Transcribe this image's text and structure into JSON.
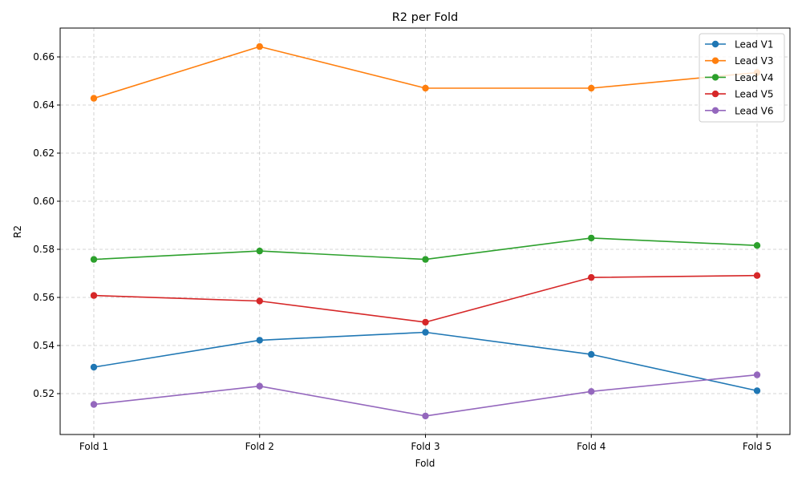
{
  "chart_data": {
    "type": "line",
    "title": "R2 per Fold",
    "xlabel": "Fold",
    "ylabel": "R2",
    "categories": [
      "Fold 1",
      "Fold 2",
      "Fold 3",
      "Fold 4",
      "Fold 5"
    ],
    "ylim": [
      0.503,
      0.672
    ],
    "yticks": [
      0.52,
      0.54,
      0.56,
      0.58,
      0.6,
      0.62,
      0.64,
      0.66
    ],
    "ytick_labels": [
      "0.52",
      "0.54",
      "0.56",
      "0.58",
      "0.60",
      "0.62",
      "0.64",
      "0.66"
    ],
    "grid": true,
    "legend_position": "top-right",
    "series": [
      {
        "name": "Lead V1",
        "color": "#1f77b4",
        "values": [
          0.531,
          0.5422,
          0.5455,
          0.5363,
          0.5212
        ]
      },
      {
        "name": "Lead V3",
        "color": "#ff7f0e",
        "values": [
          0.6428,
          0.6643,
          0.647,
          0.647,
          0.6535
        ]
      },
      {
        "name": "Lead V4",
        "color": "#2ca02c",
        "values": [
          0.5758,
          0.5793,
          0.5758,
          0.5847,
          0.5816
        ]
      },
      {
        "name": "Lead V5",
        "color": "#d62728",
        "values": [
          0.5608,
          0.5585,
          0.5497,
          0.5683,
          0.5691
        ]
      },
      {
        "name": "Lead V6",
        "color": "#9467bd",
        "values": [
          0.5155,
          0.5231,
          0.5107,
          0.5209,
          0.5278
        ]
      }
    ]
  }
}
